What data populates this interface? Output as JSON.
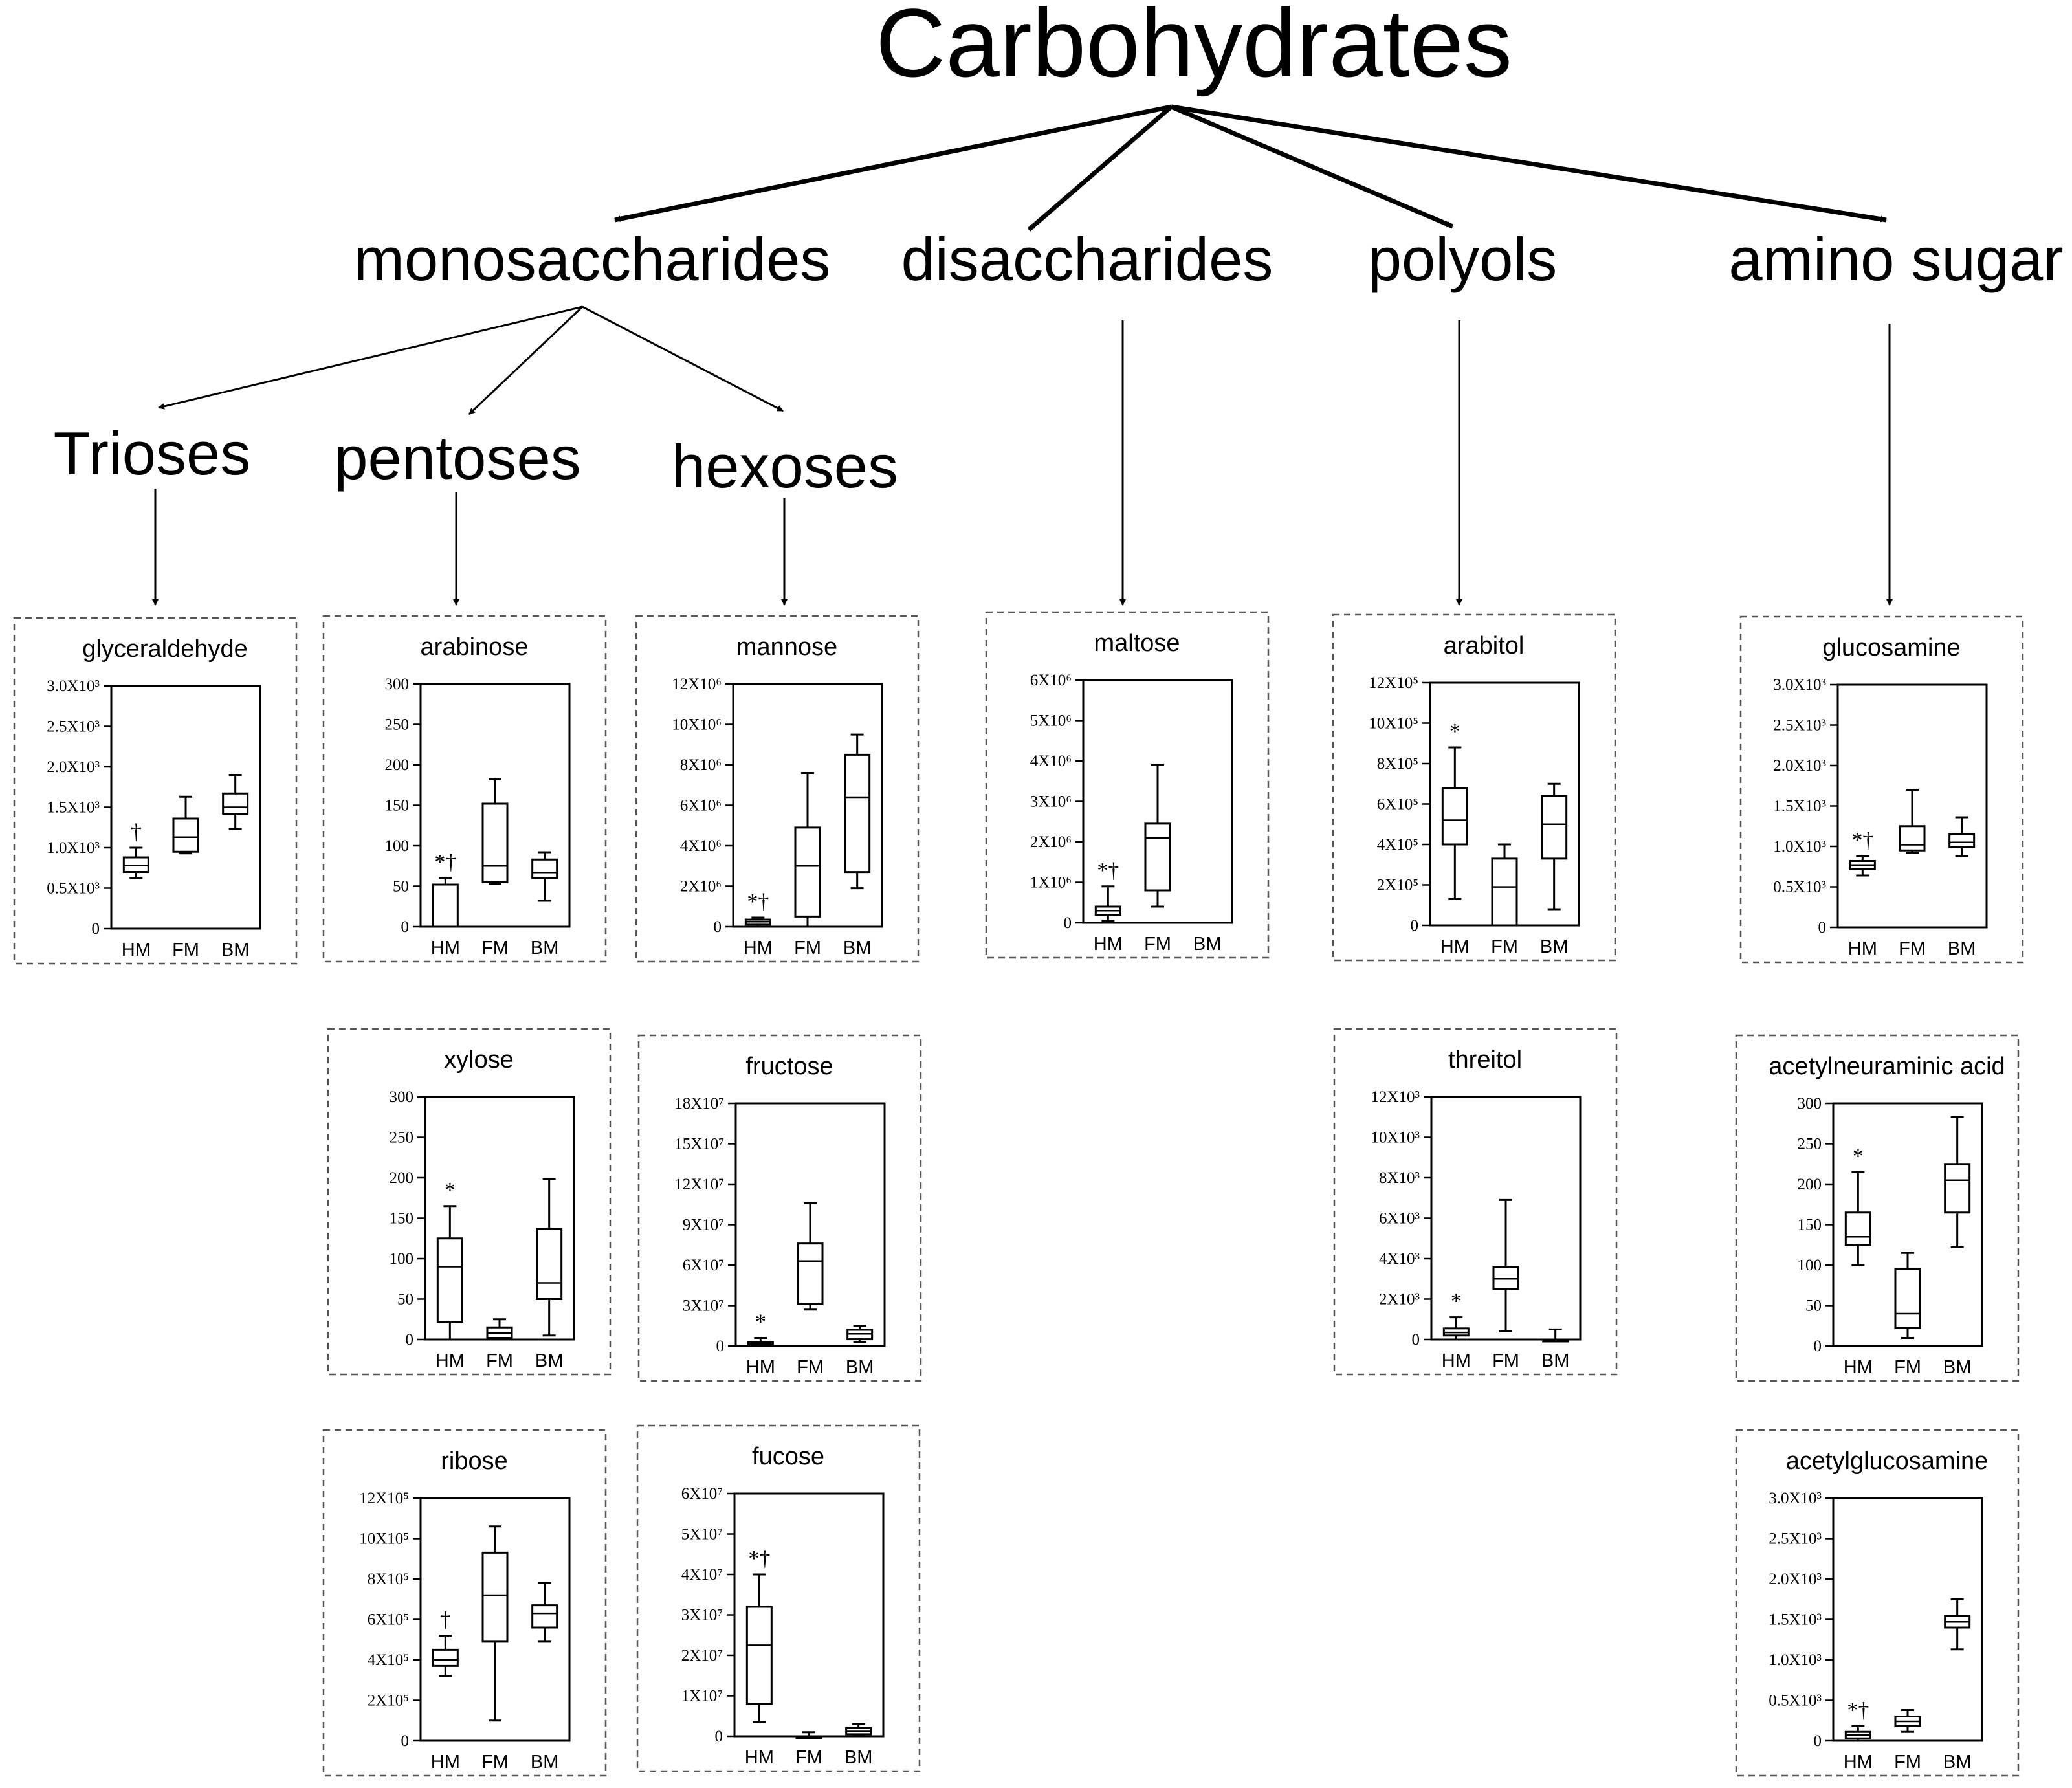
{
  "title": "Carbohydrates",
  "categories": {
    "monosaccharides": "monosaccharides",
    "disaccharides": "disaccharides",
    "polyols": "polyols",
    "amino_sugar": "amino sugar"
  },
  "subcategories": {
    "trioses": "Trioses",
    "pentoses": "pentoses",
    "hexoses": "hexoses"
  },
  "colors": {
    "line": "#000000",
    "panel_border": "#555555",
    "background": "#ffffff"
  },
  "chart_data": [
    {
      "type": "box",
      "title": "glyceraldehyde",
      "categories": [
        "HM",
        "FM",
        "BM"
      ],
      "ylim": [
        0,
        3000
      ],
      "yticks": [
        0,
        500,
        1000,
        1500,
        2000,
        2500,
        3000
      ],
      "ytick_labels": [
        "0",
        "0.5X10³",
        "1.0X10³",
        "1.5X10³",
        "2.0X10³",
        "2.5X10³",
        "3.0X10³"
      ],
      "boxes": [
        {
          "min": 620,
          "q1": 700,
          "median": 780,
          "q3": 880,
          "max": 1000
        },
        {
          "min": 930,
          "q1": 950,
          "median": 1130,
          "q3": 1360,
          "max": 1630
        },
        {
          "min": 1230,
          "q1": 1420,
          "median": 1500,
          "q3": 1670,
          "max": 1900
        }
      ],
      "annotations": [
        "†",
        "",
        ""
      ]
    },
    {
      "type": "box",
      "title": "arabinose",
      "categories": [
        "HM",
        "FM",
        "BM"
      ],
      "ylim": [
        0,
        300
      ],
      "yticks": [
        0,
        50,
        100,
        150,
        200,
        250,
        300
      ],
      "ytick_labels": [
        "0",
        "50",
        "100",
        "150",
        "200",
        "250",
        "300"
      ],
      "boxes": [
        {
          "min": 0,
          "q1": 0,
          "median": 0,
          "q3": 52,
          "max": 60
        },
        {
          "min": 53,
          "q1": 55,
          "median": 75,
          "q3": 152,
          "max": 182
        },
        {
          "min": 32,
          "q1": 60,
          "median": 67,
          "q3": 83,
          "max": 92
        }
      ],
      "annotations": [
        "*†",
        "",
        ""
      ]
    },
    {
      "type": "box",
      "title": "mannose",
      "categories": [
        "HM",
        "FM",
        "BM"
      ],
      "ylim": [
        0,
        12000000
      ],
      "yticks": [
        0,
        2000000,
        4000000,
        6000000,
        8000000,
        10000000,
        12000000
      ],
      "ytick_labels": [
        "0",
        "2X10⁶",
        "4X10⁶",
        "6X10⁶",
        "8X10⁶",
        "10X10⁶",
        "12X10⁶"
      ],
      "boxes": [
        {
          "min": 0,
          "q1": 100000,
          "median": 250000,
          "q3": 350000,
          "max": 450000
        },
        {
          "min": 0,
          "q1": 500000,
          "median": 3000000,
          "q3": 4900000,
          "max": 7600000
        },
        {
          "min": 1900000,
          "q1": 2700000,
          "median": 6400000,
          "q3": 8500000,
          "max": 9500000
        }
      ],
      "annotations": [
        "*†",
        "",
        ""
      ]
    },
    {
      "type": "box",
      "title": "maltose",
      "categories": [
        "HM",
        "FM",
        "BM"
      ],
      "ylim": [
        0,
        6000000
      ],
      "yticks": [
        0,
        1000000,
        2000000,
        3000000,
        4000000,
        5000000,
        6000000
      ],
      "ytick_labels": [
        "0",
        "1X10⁶",
        "2X10⁶",
        "3X10⁶",
        "4X10⁶",
        "5X10⁶",
        "6X10⁶"
      ],
      "boxes": [
        {
          "min": 50000,
          "q1": 200000,
          "median": 300000,
          "q3": 400000,
          "max": 900000
        },
        {
          "min": 400000,
          "q1": 800000,
          "median": 2100000,
          "q3": 2450000,
          "max": 3900000
        },
        null
      ],
      "annotations": [
        "*†",
        "",
        ""
      ]
    },
    {
      "type": "box",
      "title": "arabitol",
      "categories": [
        "HM",
        "FM",
        "BM"
      ],
      "ylim": [
        0,
        1200000
      ],
      "yticks": [
        0,
        200000,
        400000,
        600000,
        800000,
        1000000,
        1200000
      ],
      "ytick_labels": [
        "0",
        "2X10⁵",
        "4X10⁵",
        "6X10⁵",
        "8X10⁵",
        "10X10⁵",
        "12X10⁵"
      ],
      "boxes": [
        {
          "min": 130000,
          "q1": 400000,
          "median": 520000,
          "q3": 680000,
          "max": 880000
        },
        {
          "min": 0,
          "q1": 0,
          "median": 190000,
          "q3": 330000,
          "max": 400000
        },
        {
          "min": 80000,
          "q1": 330000,
          "median": 500000,
          "q3": 640000,
          "max": 700000
        }
      ],
      "annotations": [
        "*",
        "",
        ""
      ]
    },
    {
      "type": "box",
      "title": "glucosamine",
      "categories": [
        "HM",
        "FM",
        "BM"
      ],
      "ylim": [
        0,
        3000
      ],
      "yticks": [
        0,
        500,
        1000,
        1500,
        2000,
        2500,
        3000
      ],
      "ytick_labels": [
        "0",
        "0.5X10³",
        "1.0X10³",
        "1.5X10³",
        "2.0X10³",
        "2.5X10³",
        "3.0X10³"
      ],
      "boxes": [
        {
          "min": 640,
          "q1": 720,
          "median": 770,
          "q3": 820,
          "max": 880
        },
        {
          "min": 920,
          "q1": 950,
          "median": 1020,
          "q3": 1250,
          "max": 1700
        },
        {
          "min": 880,
          "q1": 990,
          "median": 1050,
          "q3": 1150,
          "max": 1360
        }
      ],
      "annotations": [
        "*†",
        "",
        ""
      ]
    },
    {
      "type": "box",
      "title": "xylose",
      "categories": [
        "HM",
        "FM",
        "BM"
      ],
      "ylim": [
        0,
        300
      ],
      "yticks": [
        0,
        50,
        100,
        150,
        200,
        250,
        300
      ],
      "ytick_labels": [
        "0",
        "50",
        "100",
        "150",
        "200",
        "250",
        "300"
      ],
      "boxes": [
        {
          "min": 0,
          "q1": 22,
          "median": 90,
          "q3": 125,
          "max": 165
        },
        {
          "min": 0,
          "q1": 2,
          "median": 8,
          "q3": 15,
          "max": 25
        },
        {
          "min": 5,
          "q1": 50,
          "median": 70,
          "q3": 137,
          "max": 198
        }
      ],
      "annotations": [
        "*",
        "",
        ""
      ]
    },
    {
      "type": "box",
      "title": "fructose",
      "categories": [
        "HM",
        "FM",
        "BM"
      ],
      "ylim": [
        0,
        180000000
      ],
      "yticks": [
        0,
        30000000,
        60000000,
        90000000,
        120000000,
        150000000,
        180000000
      ],
      "ytick_labels": [
        "0",
        "3X10⁷",
        "6X10⁷",
        "9X10⁷",
        "12X10⁷",
        "15X10⁷",
        "18X10⁷"
      ],
      "boxes": [
        {
          "min": 0,
          "q1": 500000,
          "median": 1500000,
          "q3": 3000000,
          "max": 6000000
        },
        {
          "min": 27000000,
          "q1": 31000000,
          "median": 63000000,
          "q3": 76000000,
          "max": 106000000
        },
        {
          "min": 3000000,
          "q1": 5000000,
          "median": 9000000,
          "q3": 12000000,
          "max": 15000000
        }
      ],
      "annotations": [
        "*",
        "",
        ""
      ]
    },
    {
      "type": "box",
      "title": "threitol",
      "categories": [
        "HM",
        "FM",
        "BM"
      ],
      "ylim": [
        0,
        12000
      ],
      "yticks": [
        0,
        2000,
        4000,
        6000,
        8000,
        10000,
        12000
      ],
      "ytick_labels": [
        "0",
        "2X10³",
        "4X10³",
        "6X10³",
        "8X10³",
        "10X10³",
        "12X10³"
      ],
      "boxes": [
        {
          "min": 0,
          "q1": 200,
          "median": 350,
          "q3": 550,
          "max": 1100
        },
        {
          "min": 400,
          "q1": 2500,
          "median": 3000,
          "q3": 3600,
          "max": 6900
        },
        {
          "min": 0,
          "q1": 0,
          "median": 0,
          "q3": 0,
          "max": 500
        }
      ],
      "annotations": [
        "*",
        "",
        ""
      ]
    },
    {
      "type": "box",
      "title": "acetylneuraminic acid",
      "categories": [
        "HM",
        "FM",
        "BM"
      ],
      "ylim": [
        0,
        300
      ],
      "yticks": [
        0,
        50,
        100,
        150,
        200,
        250,
        300
      ],
      "ytick_labels": [
        "0",
        "50",
        "100",
        "150",
        "200",
        "250",
        "300"
      ],
      "boxes": [
        {
          "min": 100,
          "q1": 125,
          "median": 135,
          "q3": 165,
          "max": 215
        },
        {
          "min": 10,
          "q1": 22,
          "median": 40,
          "q3": 95,
          "max": 115
        },
        {
          "min": 122,
          "q1": 165,
          "median": 205,
          "q3": 225,
          "max": 283
        }
      ],
      "annotations": [
        "*",
        "",
        ""
      ]
    },
    {
      "type": "box",
      "title": "ribose",
      "categories": [
        "HM",
        "FM",
        "BM"
      ],
      "ylim": [
        0,
        1200000
      ],
      "yticks": [
        0,
        200000,
        400000,
        600000,
        800000,
        1000000,
        1200000
      ],
      "ytick_labels": [
        "0",
        "2X10⁵",
        "4X10⁵",
        "6X10⁵",
        "8X10⁵",
        "10X10⁵",
        "12X10⁵"
      ],
      "boxes": [
        {
          "min": 320000,
          "q1": 370000,
          "median": 400000,
          "q3": 450000,
          "max": 520000
        },
        {
          "min": 100000,
          "q1": 490000,
          "median": 720000,
          "q3": 930000,
          "max": 1060000
        },
        {
          "min": 490000,
          "q1": 560000,
          "median": 630000,
          "q3": 670000,
          "max": 780000
        }
      ],
      "annotations": [
        "†",
        "",
        ""
      ]
    },
    {
      "type": "box",
      "title": "fucose",
      "categories": [
        "HM",
        "FM",
        "BM"
      ],
      "ylim": [
        0,
        60000000
      ],
      "yticks": [
        0,
        10000000,
        20000000,
        30000000,
        40000000,
        50000000,
        60000000
      ],
      "ytick_labels": [
        "0",
        "1X10⁷",
        "2X10⁷",
        "3X10⁷",
        "4X10⁷",
        "5X10⁷",
        "6X10⁷"
      ],
      "boxes": [
        {
          "min": 3500000,
          "q1": 8000000,
          "median": 22500000,
          "q3": 32000000,
          "max": 40000000
        },
        {
          "min": 0,
          "q1": 0,
          "median": 0,
          "q3": 0,
          "max": 1000000
        },
        {
          "min": 300000,
          "q1": 500000,
          "median": 1200000,
          "q3": 2000000,
          "max": 3000000
        }
      ],
      "annotations": [
        "*†",
        "",
        ""
      ]
    },
    {
      "type": "box",
      "title": "acetylglucosamine",
      "categories": [
        "HM",
        "FM",
        "BM"
      ],
      "ylim": [
        0,
        3000
      ],
      "yticks": [
        0,
        500,
        1000,
        1500,
        2000,
        2500,
        3000
      ],
      "ytick_labels": [
        "0",
        "0.5X10³",
        "1.0X10³",
        "1.5X10³",
        "2.0X10³",
        "2.5X10³",
        "3.0X10³"
      ],
      "boxes": [
        {
          "min": 0,
          "q1": 30,
          "median": 70,
          "q3": 110,
          "max": 180
        },
        {
          "min": 110,
          "q1": 180,
          "median": 240,
          "q3": 300,
          "max": 380
        },
        {
          "min": 1130,
          "q1": 1400,
          "median": 1470,
          "q3": 1540,
          "max": 1750
        }
      ],
      "annotations": [
        "*†",
        "",
        ""
      ]
    }
  ]
}
